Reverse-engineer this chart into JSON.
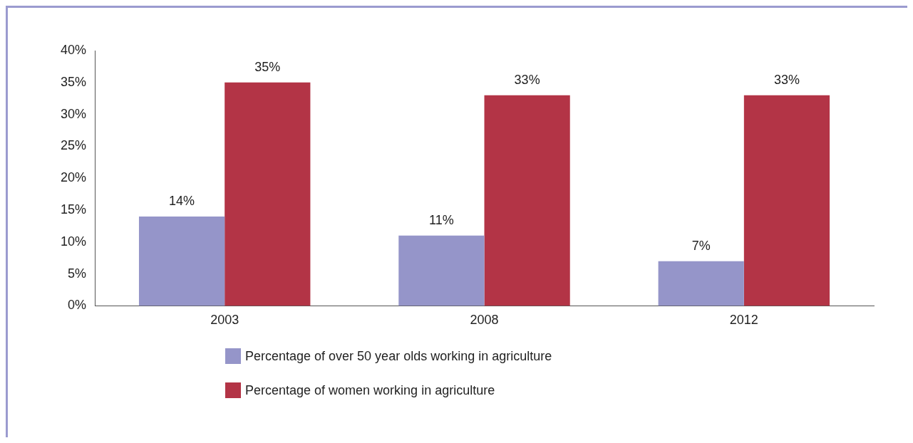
{
  "chart_data": {
    "type": "bar",
    "categories": [
      "2003",
      "2008",
      "2012"
    ],
    "series": [
      {
        "name": "Percentage of over 50 year olds working in agriculture",
        "color": "#9595c9",
        "values": [
          14,
          11,
          7
        ],
        "value_labels": [
          "14%",
          "11%",
          "7%"
        ]
      },
      {
        "name": "Percentage of women working in agriculture",
        "color": "#b33446",
        "values": [
          35,
          33,
          33
        ],
        "value_labels": [
          "35%",
          "33%",
          "33%"
        ]
      }
    ],
    "ylim": [
      0,
      40
    ],
    "yticks": [
      {
        "value": 0,
        "label": "0%"
      },
      {
        "value": 5,
        "label": "5%"
      },
      {
        "value": 10,
        "label": "10%"
      },
      {
        "value": 15,
        "label": "15%"
      },
      {
        "value": 20,
        "label": "20%"
      },
      {
        "value": 25,
        "label": "25%"
      },
      {
        "value": 30,
        "label": "30%"
      },
      {
        "value": 35,
        "label": "35%"
      },
      {
        "value": 40,
        "label": "40%"
      }
    ],
    "grid": false,
    "legend": "bottom"
  }
}
